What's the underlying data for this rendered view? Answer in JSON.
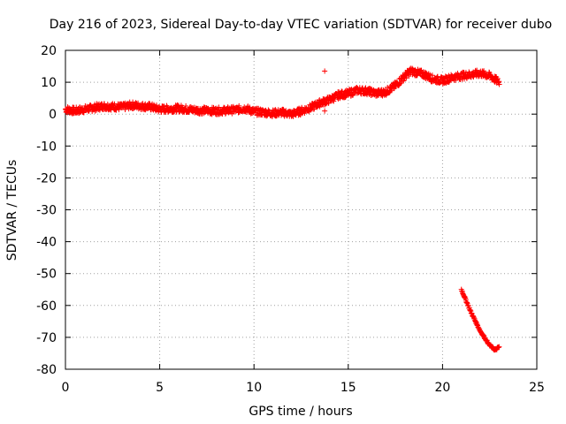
{
  "chart_data": {
    "type": "scatter",
    "title": "Day 216 of 2023, Sidereal Day-to-day VTEC variation (SDTVAR) for receiver dubo",
    "xlabel": "GPS time / hours",
    "ylabel": "SDTVAR / TECUs",
    "xlim": [
      0,
      25
    ],
    "ylim": [
      -80,
      20
    ],
    "xticks": [
      0,
      5,
      10,
      15,
      20,
      25
    ],
    "yticks": [
      20,
      10,
      0,
      -10,
      -20,
      -30,
      -40,
      -50,
      -60,
      -70,
      -80
    ],
    "grid": true,
    "marker": "+",
    "series": [
      {
        "name": "SDTVAR",
        "color": "#ff0000",
        "trend": [
          [
            0.0,
            1.5
          ],
          [
            0.5,
            1.0
          ],
          [
            1.0,
            1.5
          ],
          [
            2.0,
            2.5
          ],
          [
            3.0,
            2.2
          ],
          [
            3.5,
            2.8
          ],
          [
            4.0,
            2.5
          ],
          [
            4.5,
            2.3
          ],
          [
            5.0,
            1.5
          ],
          [
            6.0,
            1.8
          ],
          [
            7.0,
            1.2
          ],
          [
            8.0,
            1.0
          ],
          [
            9.0,
            1.3
          ],
          [
            9.5,
            1.8
          ],
          [
            10.0,
            0.8
          ],
          [
            11.0,
            0.3
          ],
          [
            11.5,
            0.5
          ],
          [
            12.0,
            0.0
          ],
          [
            12.5,
            1.0
          ],
          [
            13.0,
            2.0
          ],
          [
            13.5,
            3.5
          ],
          [
            14.0,
            4.5
          ],
          [
            14.5,
            6.0
          ],
          [
            15.0,
            6.5
          ],
          [
            15.5,
            7.5
          ],
          [
            16.0,
            7.2
          ],
          [
            16.5,
            6.5
          ],
          [
            17.0,
            7.0
          ],
          [
            17.5,
            9.0
          ],
          [
            18.0,
            12.0
          ],
          [
            18.3,
            13.5
          ],
          [
            19.0,
            12.5
          ],
          [
            19.5,
            11.0
          ],
          [
            20.0,
            10.5
          ],
          [
            20.5,
            11.5
          ],
          [
            21.0,
            12.0
          ],
          [
            22.0,
            12.8
          ],
          [
            22.5,
            12.0
          ],
          [
            23.0,
            10.0
          ]
        ],
        "arc": [
          [
            21.0,
            -55
          ],
          [
            21.5,
            -62
          ],
          [
            22.0,
            -68
          ],
          [
            22.5,
            -72.5
          ],
          [
            22.8,
            -74
          ],
          [
            23.0,
            -73
          ]
        ],
        "outliers": [
          [
            13.75,
            13.5
          ],
          [
            13.75,
            1.0
          ]
        ]
      }
    ]
  }
}
